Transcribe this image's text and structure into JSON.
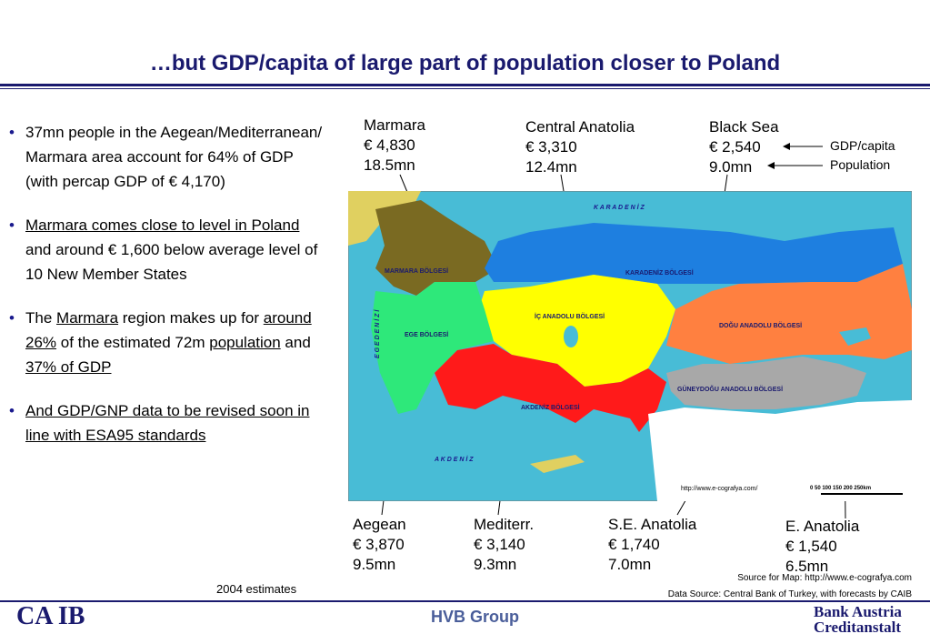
{
  "title": "…but GDP/capita of large part of population closer to Poland",
  "bullets": [
    {
      "text": "37mn people in the Aegean/Mediterranean/ Marmara area account for 64% of GDP (with percap GDP of € 4,170)"
    },
    {
      "p1": "Marmara comes close to level in Poland",
      "p2": " and around € 1,600 below average level of 10 New Member States"
    },
    {
      "p1": "The ",
      "p2": "Marmara",
      "p3": " region makes up for ",
      "p4": "around 26%",
      "p5": " of the estimated 72m ",
      "p6": "population",
      "p7": " and ",
      "p8": "37% of GDP"
    },
    {
      "text": "And GDP/GNP data to be revised soon in line with ESA95 standards"
    }
  ],
  "estimates": "2004 estimates",
  "regions": {
    "marmara": {
      "name": "Marmara",
      "gdp": "€ 4,830",
      "pop": "18.5mn"
    },
    "central": {
      "name": "Central Anatolia",
      "gdp": "€ 3,310",
      "pop": "12.4mn"
    },
    "blacksea": {
      "name": "Black Sea",
      "gdp": "€ 2,540",
      "pop": "9.0mn"
    },
    "aegean": {
      "name": "Aegean",
      "gdp": "€ 3,870",
      "pop": "9.5mn"
    },
    "mediterr": {
      "name": "Mediterr.",
      "gdp": "€ 3,140",
      "pop": "9.3mn"
    },
    "se": {
      "name": "S.E. Anatolia",
      "gdp": "€ 1,740",
      "pop": "7.0mn"
    },
    "east": {
      "name": "E. Anatolia",
      "gdp": "€ 1,540",
      "pop": "6.5mn"
    }
  },
  "legend": {
    "gdp": "GDP/capita",
    "pop": "Population"
  },
  "map": {
    "sea_north": "K A R A D E N İ Z",
    "sea_west": "E G E  D E N İ Z İ",
    "sea_south": "A K D E N İ Z",
    "labels": {
      "marmara": "MARMARA BÖLGESİ",
      "ege": "EGE BÖLGESİ",
      "ic": "İÇ ANADOLU BÖLGESİ",
      "karadeniz": "KARADENİZ BÖLGESİ",
      "dogu": "DOĞU ANADOLU BÖLGESİ",
      "guneydogu": "GÜNEYDOĞU ANADOLU BÖLGESİ",
      "akdeniz": "AKDENİZ BÖLGESİ"
    },
    "url": "http://www.e-cografya.com/",
    "scale": "0  50  100  150  200  250km"
  },
  "sources": {
    "map": "Source for Map: http://www.e-cografya.com",
    "data": "Data Source: Central Bank of Turkey, with forecasts by CAIB"
  },
  "logos": {
    "caib": "CA IB",
    "hvb": "HVB Group",
    "ba1": "Bank Austria",
    "ba2": "Creditanstalt"
  }
}
